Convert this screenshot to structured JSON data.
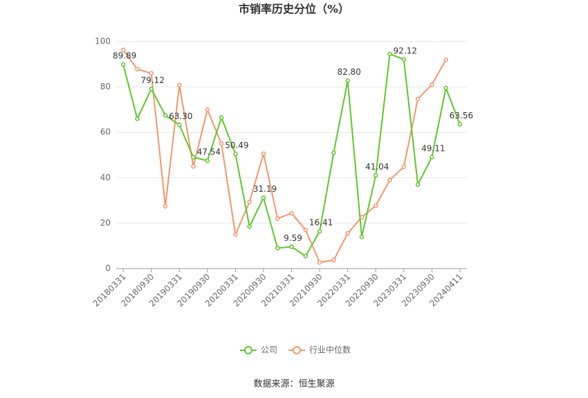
{
  "chart_data": {
    "type": "line",
    "title": "市销率历史分位（%）",
    "categories": [
      "20180331",
      null,
      "20180930",
      null,
      "20190331",
      null,
      "20190930",
      null,
      "20200331",
      null,
      "20200930",
      null,
      "20210331",
      null,
      "20210930",
      null,
      "20220331",
      null,
      "20220930",
      null,
      "20230331",
      null,
      "20230930",
      null,
      "20240411"
    ],
    "series": [
      {
        "name": "公司",
        "color": "#5cc72a",
        "values": [
          89.89,
          66,
          79.12,
          67.5,
          63.3,
          49,
          47.54,
          66.5,
          50.49,
          18.5,
          31.19,
          9,
          9.59,
          5.5,
          16.41,
          51,
          82.8,
          14,
          41.04,
          94.5,
          92.12,
          37,
          49.11,
          79.5,
          63.56
        ],
        "value_labels": [
          "89.89",
          null,
          "79.12",
          null,
          "63.30",
          null,
          "47.54",
          null,
          "50.49",
          null,
          "31.19",
          null,
          "9.59",
          null,
          "16.41",
          null,
          "82.80",
          null,
          "41.04",
          null,
          "92.12",
          null,
          "49.11",
          null,
          "63.56"
        ]
      },
      {
        "name": "行业中位数",
        "color": "#f4956a",
        "values": [
          96.3,
          87.8,
          86,
          27.4,
          80.8,
          45,
          70,
          55,
          15,
          29.3,
          50.6,
          22,
          24.4,
          17,
          2.7,
          3.7,
          15.5,
          22.6,
          27.7,
          39,
          44.8,
          74.7,
          81,
          92,
          null
        ]
      }
    ],
    "ylim": [
      0,
      100
    ],
    "yticks": [
      0,
      20,
      40,
      60,
      80,
      100
    ],
    "grid": true,
    "legend": "bottom",
    "source": "数据来源：恒生聚源"
  }
}
